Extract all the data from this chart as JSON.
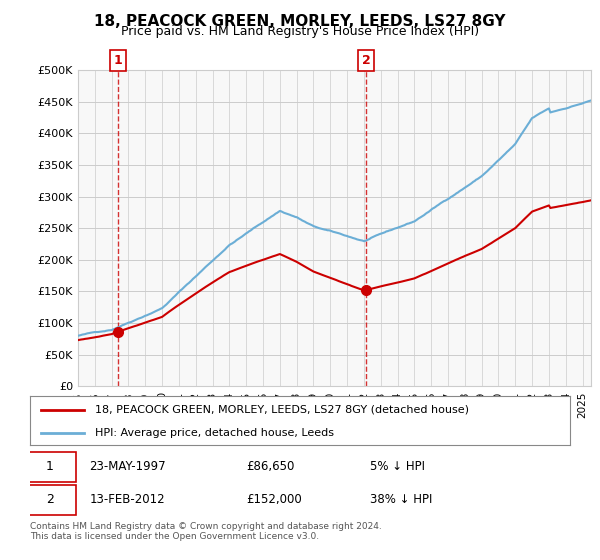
{
  "title": "18, PEACOCK GREEN, MORLEY, LEEDS, LS27 8GY",
  "subtitle": "Price paid vs. HM Land Registry's House Price Index (HPI)",
  "ylim": [
    0,
    500000
  ],
  "yticks": [
    0,
    50000,
    100000,
    150000,
    200000,
    250000,
    300000,
    350000,
    400000,
    450000,
    500000
  ],
  "sale1_date": 1997.39,
  "sale1_price": 86650,
  "sale1_label": "1",
  "sale1_date_str": "23-MAY-1997",
  "sale1_price_str": "£86,650",
  "sale1_hpi_str": "5% ↓ HPI",
  "sale2_date": 2012.12,
  "sale2_price": 152000,
  "sale2_label": "2",
  "sale2_date_str": "13-FEB-2012",
  "sale2_price_str": "£152,000",
  "sale2_hpi_str": "38% ↓ HPI",
  "hpi_color": "#6baed6",
  "price_color": "#cc0000",
  "background_color": "#ffffff",
  "grid_color": "#cccccc",
  "legend1_label": "18, PEACOCK GREEN, MORLEY, LEEDS, LS27 8GY (detached house)",
  "legend2_label": "HPI: Average price, detached house, Leeds",
  "footer": "Contains HM Land Registry data © Crown copyright and database right 2024.\nThis data is licensed under the Open Government Licence v3.0.",
  "xlim_start": 1995.0,
  "xlim_end": 2025.5
}
